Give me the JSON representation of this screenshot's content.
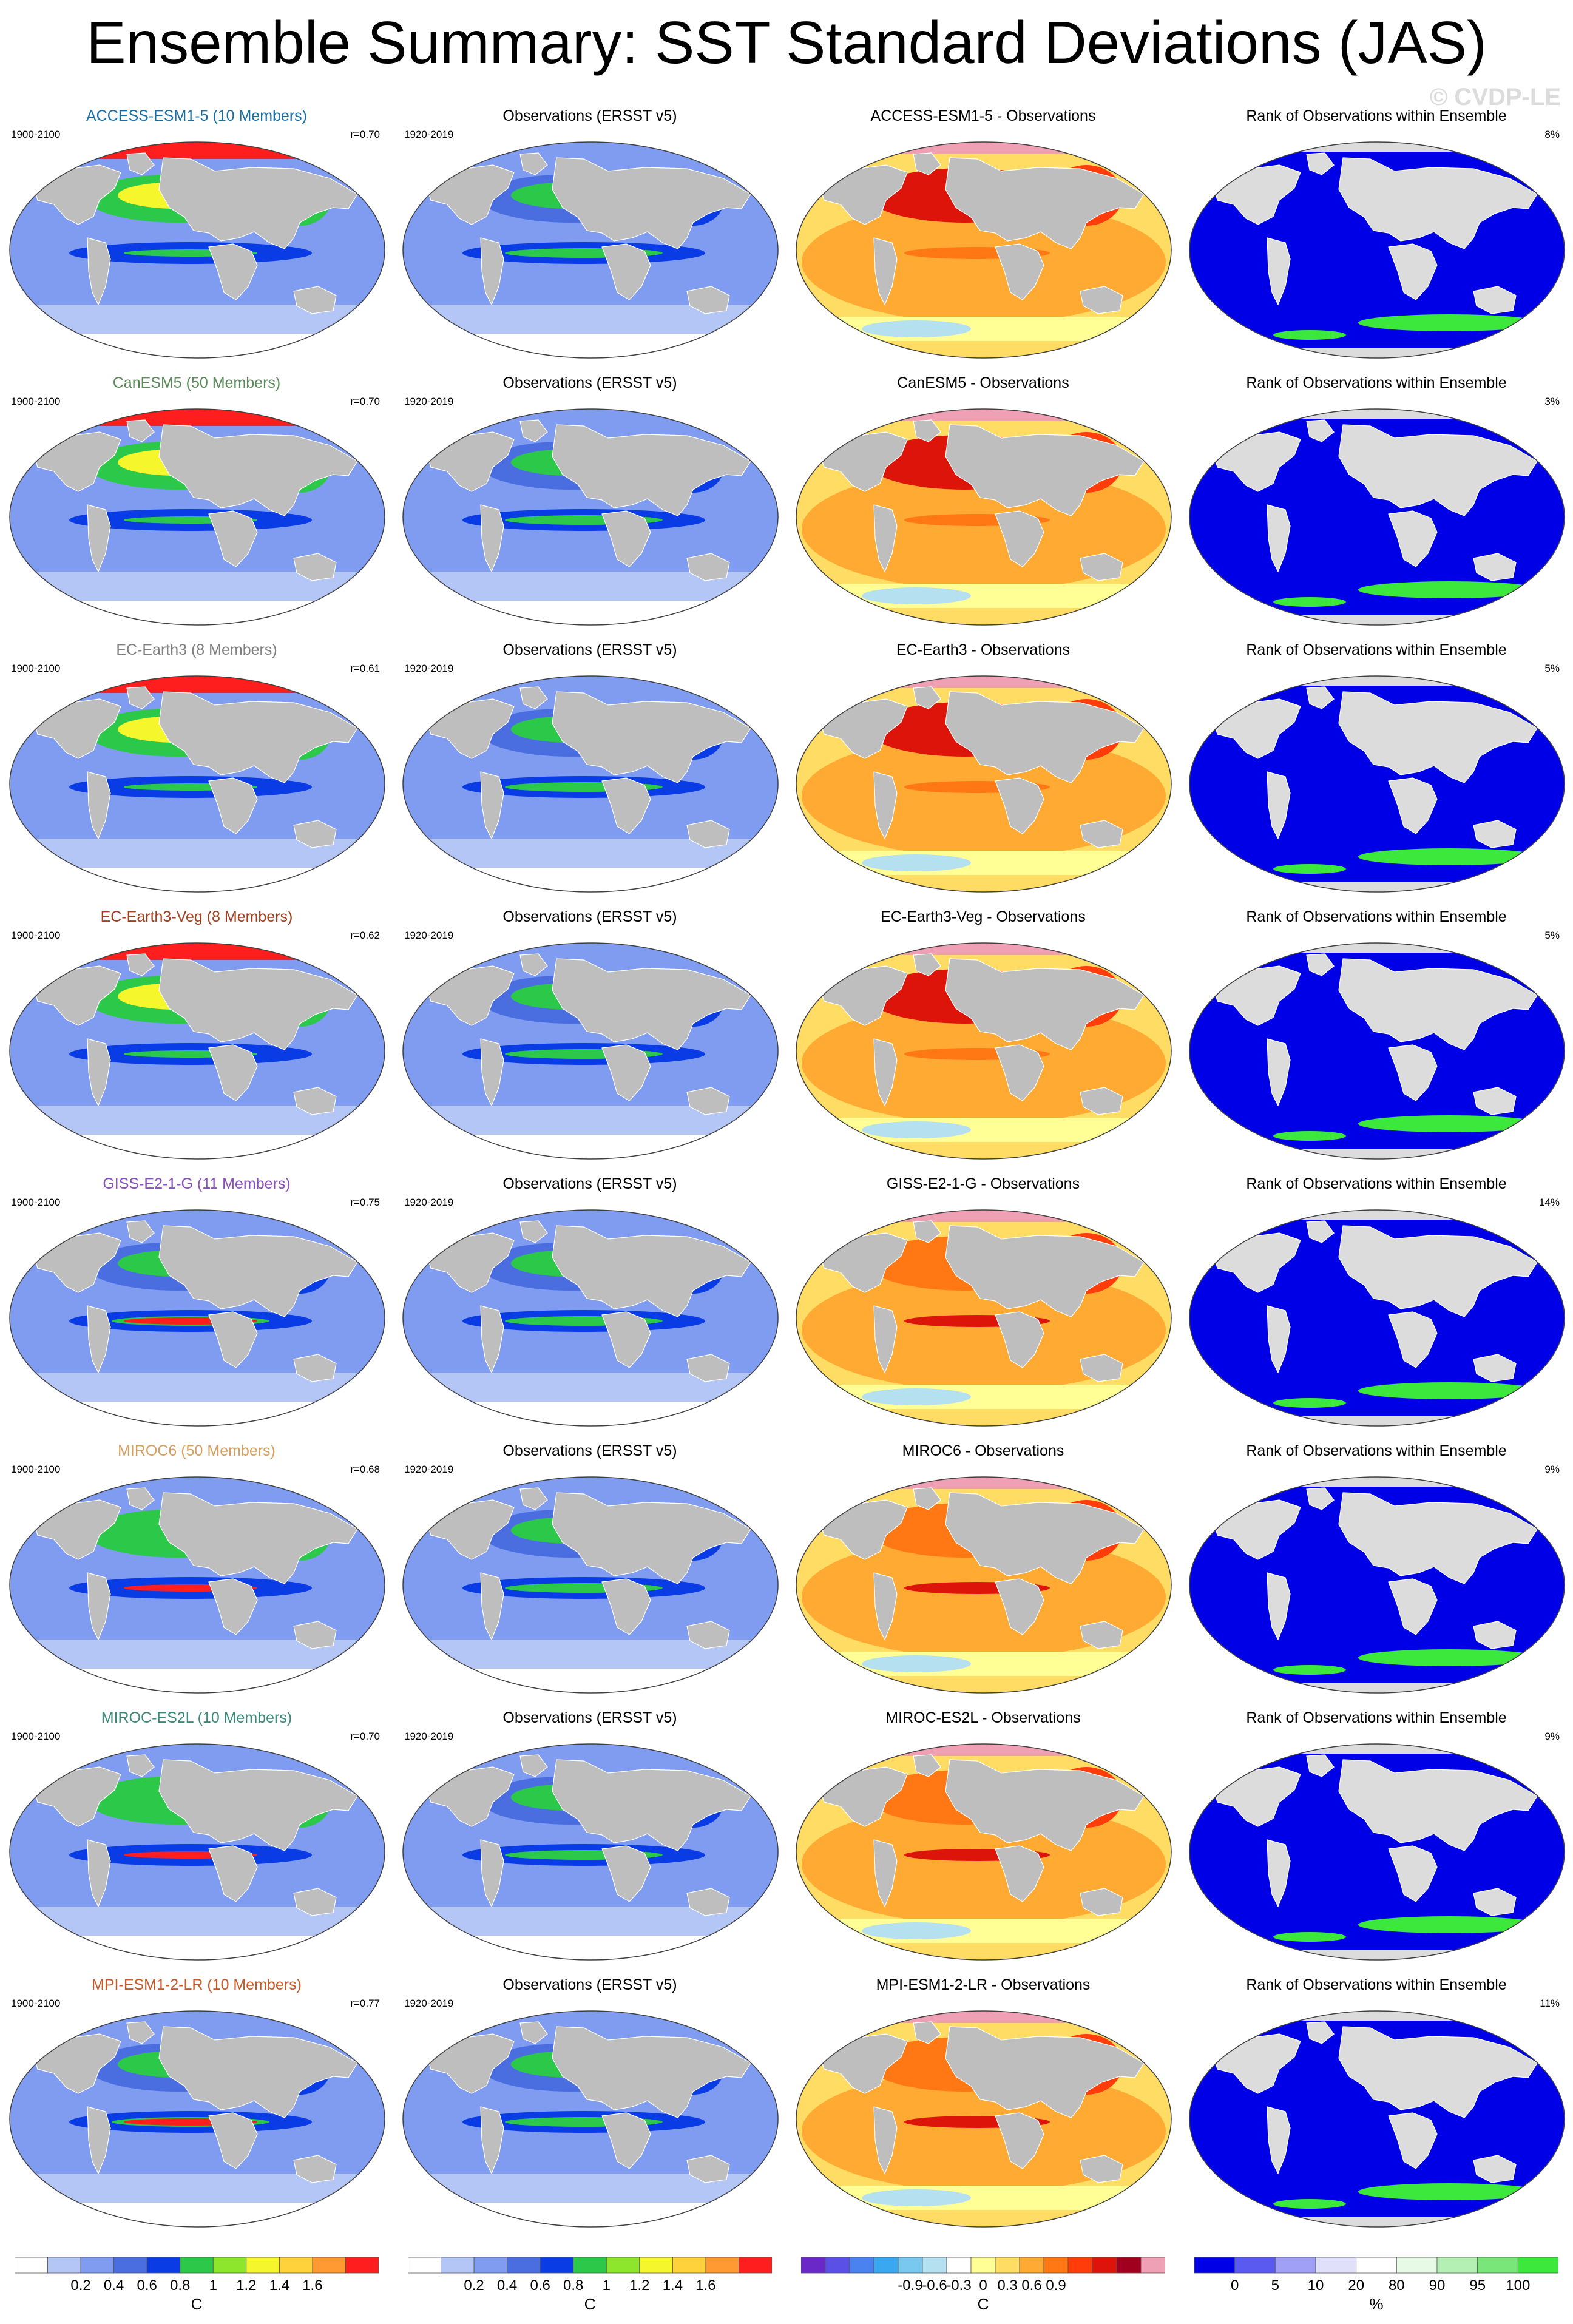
{
  "title": "Ensemble Summary: SST Standard Deviations (JAS)",
  "watermark": "© CVDP-LE",
  "colors": {
    "land": "#bebebe",
    "land_light": "#dcdcdc",
    "ocean_white": "#ffffff",
    "ocean_lightblue": "#b4c6f6",
    "ocean_mediumblue": "#7f9cf0",
    "rank_blue": "#0000e6",
    "rank_green": "#3ce83c"
  },
  "rows": [
    {
      "model": {
        "title": "ACCESS-ESM1-5 (10 Members)",
        "title_color": "#1a6ea8",
        "period": "1900-2100",
        "corr": "r=0.70"
      },
      "obs": {
        "title": "Observations (ERSST v5)",
        "period": "1920-2019"
      },
      "diff": {
        "title": "ACCESS-ESM1-5 - Observations"
      },
      "rank": {
        "title": "Rank of Observations within Ensemble",
        "pct": "8%"
      },
      "intensity": 3
    },
    {
      "model": {
        "title": "CanESM5 (50 Members)",
        "title_color": "#5a8a5a",
        "period": "1900-2100",
        "corr": "r=0.70"
      },
      "obs": {
        "title": "Observations (ERSST v5)",
        "period": "1920-2019"
      },
      "diff": {
        "title": "CanESM5 - Observations"
      },
      "rank": {
        "title": "Rank of Observations within Ensemble",
        "pct": "3%"
      },
      "intensity": 4
    },
    {
      "model": {
        "title": "EC-Earth3 (8 Members)",
        "title_color": "#808080",
        "period": "1900-2100",
        "corr": "r=0.61"
      },
      "obs": {
        "title": "Observations (ERSST v5)",
        "period": "1920-2019"
      },
      "diff": {
        "title": "EC-Earth3 - Observations"
      },
      "rank": {
        "title": "Rank of Observations within Ensemble",
        "pct": "5%"
      },
      "intensity": 4
    },
    {
      "model": {
        "title": "EC-Earth3-Veg (8 Members)",
        "title_color": "#a0401e",
        "period": "1900-2100",
        "corr": "r=0.62"
      },
      "obs": {
        "title": "Observations (ERSST v5)",
        "period": "1920-2019"
      },
      "diff": {
        "title": "EC-Earth3-Veg - Observations"
      },
      "rank": {
        "title": "Rank of Observations within Ensemble",
        "pct": "5%"
      },
      "intensity": 4
    },
    {
      "model": {
        "title": "GISS-E2-1-G (11 Members)",
        "title_color": "#8a4fc0",
        "period": "1900-2100",
        "corr": "r=0.75"
      },
      "obs": {
        "title": "Observations (ERSST v5)",
        "period": "1920-2019"
      },
      "diff": {
        "title": "GISS-E2-1-G - Observations"
      },
      "rank": {
        "title": "Rank of Observations within Ensemble",
        "pct": "14%"
      },
      "intensity": 1
    },
    {
      "model": {
        "title": "MIROC6 (50 Members)",
        "title_color": "#d8a060",
        "period": "1900-2100",
        "corr": "r=0.68"
      },
      "obs": {
        "title": "Observations (ERSST v5)",
        "period": "1920-2019"
      },
      "diff": {
        "title": "MIROC6 - Observations"
      },
      "rank": {
        "title": "Rank of Observations within Ensemble",
        "pct": "9%"
      },
      "intensity": 2
    },
    {
      "model": {
        "title": "MIROC-ES2L (10 Members)",
        "title_color": "#3a8a7a",
        "period": "1900-2100",
        "corr": "r=0.70"
      },
      "obs": {
        "title": "Observations (ERSST v5)",
        "period": "1920-2019"
      },
      "diff": {
        "title": "MIROC-ES2L - Observations"
      },
      "rank": {
        "title": "Rank of Observations within Ensemble",
        "pct": "9%"
      },
      "intensity": 2
    },
    {
      "model": {
        "title": "MPI-ESM1-2-LR (10 Members)",
        "title_color": "#c85a28",
        "period": "1900-2100",
        "corr": "r=0.77"
      },
      "obs": {
        "title": "Observations (ERSST v5)",
        "period": "1920-2019"
      },
      "diff": {
        "title": "MPI-ESM1-2-LR - Observations"
      },
      "rank": {
        "title": "Rank of Observations within Ensemble",
        "pct": "11%"
      },
      "intensity": 1
    }
  ],
  "colorbars": [
    {
      "unit": "C",
      "labels": [
        "0.2",
        "0.4",
        "0.6",
        "0.8",
        "1",
        "1.2",
        "1.4",
        "1.6"
      ],
      "colors": [
        "#ffffff",
        "#b4c6f6",
        "#7f9cf0",
        "#4a6ee0",
        "#0a3ce6",
        "#2cc84a",
        "#8ee62c",
        "#f6f62c",
        "#ffd23c",
        "#ff9a32",
        "#ff1e1e"
      ]
    },
    {
      "unit": "C",
      "labels": [
        "0.2",
        "0.4",
        "0.6",
        "0.8",
        "1",
        "1.2",
        "1.4",
        "1.6"
      ],
      "colors": [
        "#ffffff",
        "#b4c6f6",
        "#7f9cf0",
        "#4a6ee0",
        "#0a3ce6",
        "#2cc84a",
        "#8ee62c",
        "#f6f62c",
        "#ffd23c",
        "#ff9a32",
        "#ff1e1e"
      ]
    },
    {
      "unit": "C",
      "labels": [
        "-0.9",
        "-0.6",
        "-0.3",
        "0",
        "0.3",
        "0.6",
        "0.9"
      ],
      "colors": [
        "#6a28c8",
        "#5a50e6",
        "#4a82f0",
        "#3aa8f0",
        "#78c8f0",
        "#b4e0f0",
        "#ffffff",
        "#ffff96",
        "#ffdc64",
        "#ffaa32",
        "#ff7814",
        "#ff3c0a",
        "#dc140a",
        "#a0001e",
        "#f0a0b4"
      ]
    },
    {
      "unit": "%",
      "labels": [
        "0",
        "5",
        "10",
        "20",
        "80",
        "90",
        "95",
        "100"
      ],
      "colors": [
        "#0000e6",
        "#5a5af0",
        "#a0a0f6",
        "#e0e0fa",
        "#ffffff",
        "#e6fae6",
        "#b4f0b4",
        "#78e678",
        "#3ce83c"
      ]
    }
  ]
}
